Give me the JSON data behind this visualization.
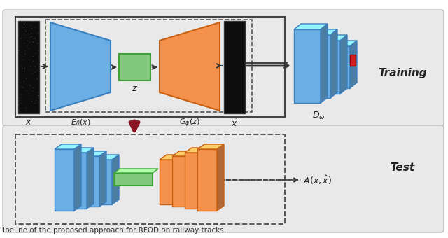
{
  "bg_color": "#f2f2f2",
  "panel_color": "#e9e9e9",
  "panel_edge": "#bbbbbb",
  "blue_face": "#6aaee3",
  "blue_light": "#a8d0f0",
  "blue_dark": "#3a7fbf",
  "orange_face": "#f4924d",
  "orange_light": "#f9be8d",
  "orange_dark": "#c96010",
  "green_face": "#82c97e",
  "green_light": "#b5e0b2",
  "green_dark": "#3fa33a",
  "black_img": "#111111",
  "black_img2": "#222222",
  "red_arrow": "#8b1525",
  "red_dot": "#cc2222",
  "text_color": "#222222",
  "caption": "ipeline of the proposed approach for RFOD on railway tracks."
}
